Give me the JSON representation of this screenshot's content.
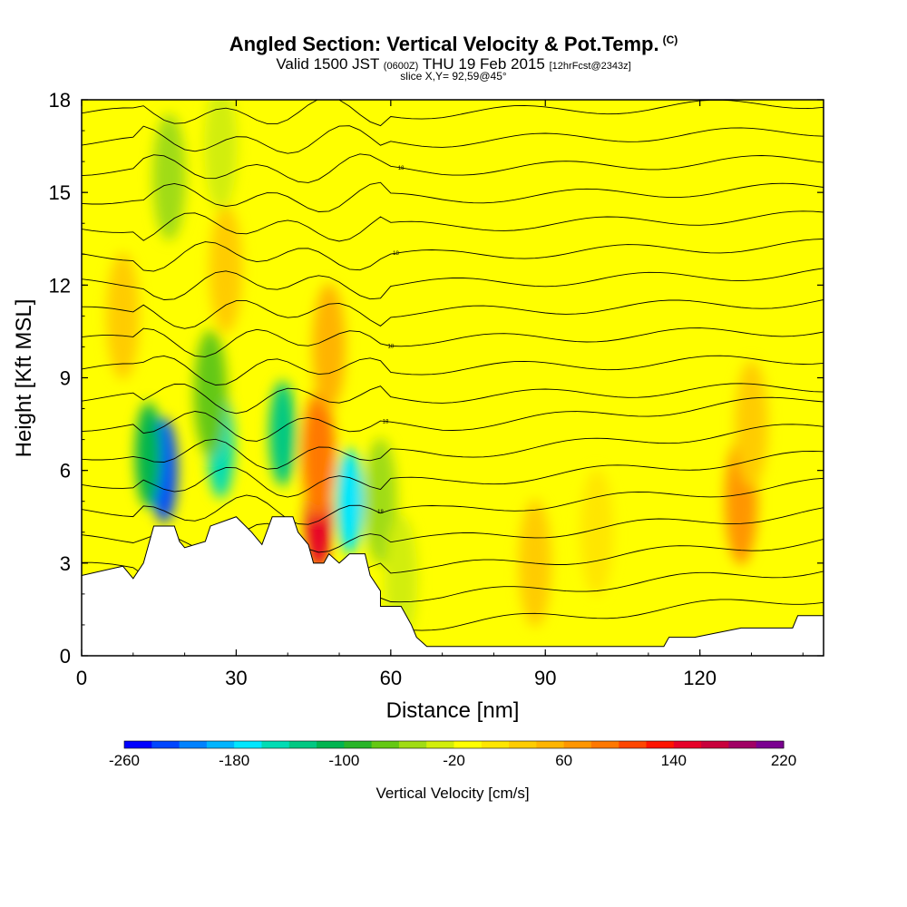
{
  "header": {
    "title": "Angled Section: Vertical Velocity & Pot.Temp.",
    "title_mark": "(C)",
    "valid_prefix": "Valid 1500 JST",
    "valid_utc": "(0600Z)",
    "valid_date": "THU 19 Feb 2015",
    "forecast": "[12hrFcst@2343z]",
    "slice": "slice X,Y= 92,59@45°"
  },
  "chart_data": {
    "type": "heatmap",
    "xlabel": "Distance [nm]",
    "ylabel": "Height [Kft MSL]",
    "xlim": [
      0,
      144
    ],
    "ylim": [
      0,
      18
    ],
    "x_ticks": [
      0,
      30,
      60,
      90,
      120
    ],
    "y_ticks": [
      0,
      3,
      6,
      9,
      12,
      15,
      18
    ],
    "grid": false,
    "background_value": -10,
    "colorbar": {
      "label": "Vertical Velocity [cm/s]",
      "tick_labels": [
        "-260",
        "-180",
        "-100",
        "-20",
        "60",
        "140",
        "220"
      ],
      "bins": [
        -260,
        -240,
        -220,
        -200,
        -180,
        -160,
        -140,
        -120,
        -100,
        -80,
        -60,
        -40,
        -20,
        0,
        20,
        40,
        60,
        80,
        100,
        120,
        140,
        160,
        180,
        200,
        220
      ],
      "colors": [
        "#0000ff",
        "#0046ff",
        "#0082ff",
        "#00b4ff",
        "#00e6ff",
        "#00dcb4",
        "#00c882",
        "#00b450",
        "#28b428",
        "#64c814",
        "#a0dc14",
        "#d2ee0a",
        "#ffff00",
        "#ffe600",
        "#ffcc00",
        "#ffb400",
        "#ff9600",
        "#ff7800",
        "#ff4600",
        "#ff1400",
        "#e60028",
        "#c8003c",
        "#a00064",
        "#7a0090"
      ]
    },
    "velocity_features": [
      {
        "x": 16,
        "y": 6.0,
        "value": -240
      },
      {
        "x": 13,
        "y": 6.5,
        "value": -120
      },
      {
        "x": 27,
        "y": 6.8,
        "value": -160
      },
      {
        "x": 25,
        "y": 8.5,
        "value": -80
      },
      {
        "x": 39,
        "y": 7.2,
        "value": -140
      },
      {
        "x": 46,
        "y": 4.5,
        "value": 140
      },
      {
        "x": 46,
        "y": 6.5,
        "value": 80
      },
      {
        "x": 52,
        "y": 5.0,
        "value": -180
      },
      {
        "x": 48,
        "y": 10.0,
        "value": 40
      },
      {
        "x": 58,
        "y": 5.0,
        "value": -60
      },
      {
        "x": 17,
        "y": 15.5,
        "value": -60
      },
      {
        "x": 27,
        "y": 16.5,
        "value": -40
      },
      {
        "x": 8,
        "y": 11.0,
        "value": 30
      },
      {
        "x": 28,
        "y": 12.5,
        "value": 30
      },
      {
        "x": 128,
        "y": 5.0,
        "value": 60
      },
      {
        "x": 130,
        "y": 7.5,
        "value": 30
      },
      {
        "x": 88,
        "y": 3.0,
        "value": 20
      },
      {
        "x": 100,
        "y": 4.0,
        "value": 15
      },
      {
        "x": 62,
        "y": 2.5,
        "value": -40
      }
    ],
    "terrain": [
      [
        0,
        2.6
      ],
      [
        8,
        2.9
      ],
      [
        10,
        2.5
      ],
      [
        12,
        3.0
      ],
      [
        13,
        3.6
      ],
      [
        14,
        4.2
      ],
      [
        18,
        4.2
      ],
      [
        19,
        3.7
      ],
      [
        20,
        3.5
      ],
      [
        24,
        3.7
      ],
      [
        25,
        4.2
      ],
      [
        30,
        4.5
      ],
      [
        33,
        4.0
      ],
      [
        35,
        3.6
      ],
      [
        37,
        4.5
      ],
      [
        41,
        4.5
      ],
      [
        42,
        4.0
      ],
      [
        44,
        3.6
      ],
      [
        45,
        3.0
      ],
      [
        47,
        3.0
      ],
      [
        48,
        3.3
      ],
      [
        50,
        3.0
      ],
      [
        52,
        3.3
      ],
      [
        55,
        3.3
      ],
      [
        56,
        2.6
      ],
      [
        58,
        2.1
      ],
      [
        58,
        1.6
      ],
      [
        62,
        1.6
      ],
      [
        64,
        1.0
      ],
      [
        65,
        0.6
      ],
      [
        67,
        0.3
      ],
      [
        113,
        0.3
      ],
      [
        114,
        0.6
      ],
      [
        119,
        0.6
      ],
      [
        128,
        0.9
      ],
      [
        138,
        0.9
      ],
      [
        139,
        1.3
      ],
      [
        144,
        1.3
      ]
    ],
    "contour_label": "18"
  }
}
